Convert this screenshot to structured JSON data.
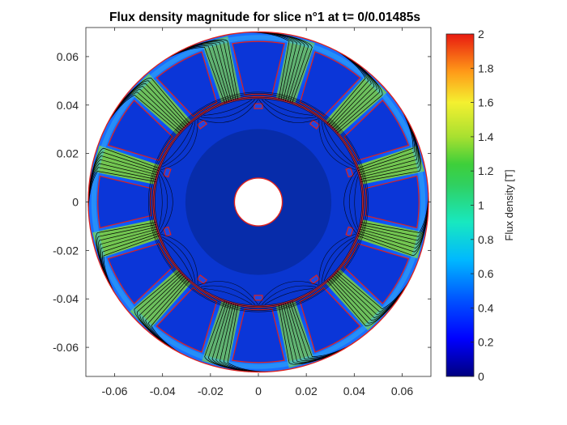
{
  "chart_data": {
    "type": "heatmap",
    "title": "Flux density magnitude for slice n°1 at t= 0/0.01485s",
    "xlabel": "",
    "ylabel": "",
    "xlim": [
      -0.072,
      0.072
    ],
    "ylim": [
      -0.072,
      0.072
    ],
    "x_ticks": [
      -0.06,
      -0.04,
      -0.02,
      0,
      0.02,
      0.04,
      0.06
    ],
    "x_tick_labels": [
      "-0.06",
      "-0.04",
      "-0.02",
      "0",
      "0.02",
      "0.04",
      "0.06"
    ],
    "y_ticks": [
      0.06,
      0.04,
      0.02,
      0,
      -0.02,
      -0.04,
      -0.06
    ],
    "y_tick_labels": [
      "0.06",
      "0.04",
      "0.02",
      "0",
      "-0.02",
      "-0.04",
      "-0.06"
    ],
    "colorbar": {
      "label": "Flux density [T]",
      "range": [
        0,
        2
      ],
      "ticks": [
        0,
        0.2,
        0.4,
        0.6,
        0.8,
        1,
        1.2,
        1.4,
        1.6,
        1.8,
        2
      ],
      "tick_labels": [
        "0",
        "0.2",
        "0.4",
        "0.6",
        "0.8",
        "1",
        "1.2",
        "1.4",
        "1.6",
        "1.8",
        "2"
      ],
      "colormap": "jet"
    },
    "geometry": {
      "stator_outer_radius": 0.071,
      "stator_slots": 12,
      "slot_inner_radius": 0.045,
      "slot_outer_radius": 0.067,
      "airgap_radius": 0.044,
      "rotor_outer_radius": 0.0435,
      "rotor_magnet_radius": 0.04,
      "rotor_poles": 10,
      "shaft_radius": 0.01
    },
    "grid": false,
    "colors": {
      "background_field": "#0a3cf0",
      "tooth_field": "#7fd23c",
      "outline": "#e0201c",
      "flux_line": "#000000"
    }
  }
}
